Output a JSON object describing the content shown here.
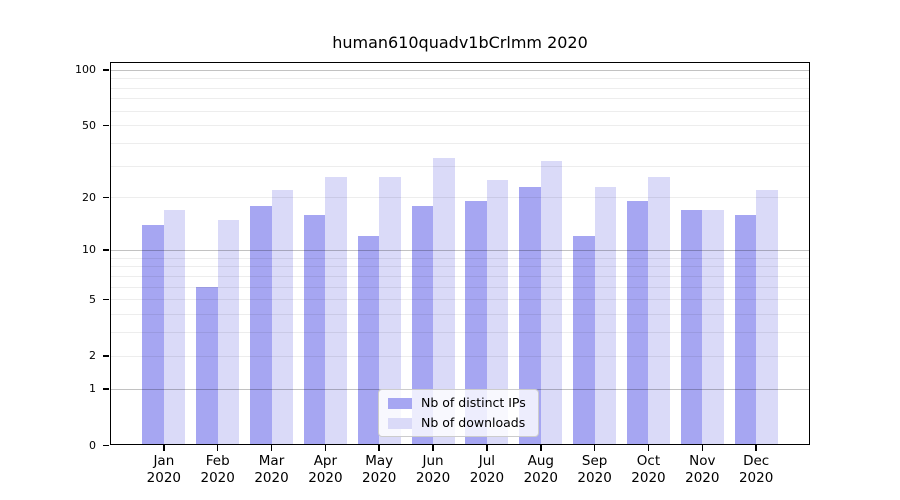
{
  "chart_data": {
    "type": "bar",
    "title": "human610quadv1bCrlmm 2020",
    "categories": [
      "Jan 2020",
      "Feb 2020",
      "Mar 2020",
      "Apr 2020",
      "May 2020",
      "Jun 2020",
      "Jul 2020",
      "Aug 2020",
      "Sep 2020",
      "Oct 2020",
      "Nov 2020",
      "Dec 2020"
    ],
    "month_labels": [
      "Jan",
      "Feb",
      "Mar",
      "Apr",
      "May",
      "Jun",
      "Jul",
      "Aug",
      "Sep",
      "Oct",
      "Nov",
      "Dec"
    ],
    "year_label": "2020",
    "series": [
      {
        "name": "Nb of distinct IPs",
        "color": "#a6a6f2",
        "values": [
          14,
          6,
          18,
          16,
          12,
          18,
          19,
          23,
          12,
          19,
          17,
          16
        ]
      },
      {
        "name": "Nb of downloads",
        "color": "#dadaf8",
        "values": [
          17,
          15,
          22,
          26,
          26,
          33,
          25,
          32,
          23,
          26,
          17,
          22
        ]
      }
    ],
    "yscale": "log1p",
    "ylim": [
      0,
      110
    ],
    "y_ticks": [
      0,
      1,
      2,
      5,
      10,
      20,
      50,
      100
    ],
    "y_major_gridlines": [
      1,
      10,
      100
    ],
    "y_minor_gridlines": [
      2,
      3,
      4,
      5,
      6,
      7,
      8,
      9,
      20,
      30,
      40,
      50,
      60,
      70,
      80,
      90
    ],
    "legend": {
      "position": "lower center"
    },
    "grid": true
  }
}
